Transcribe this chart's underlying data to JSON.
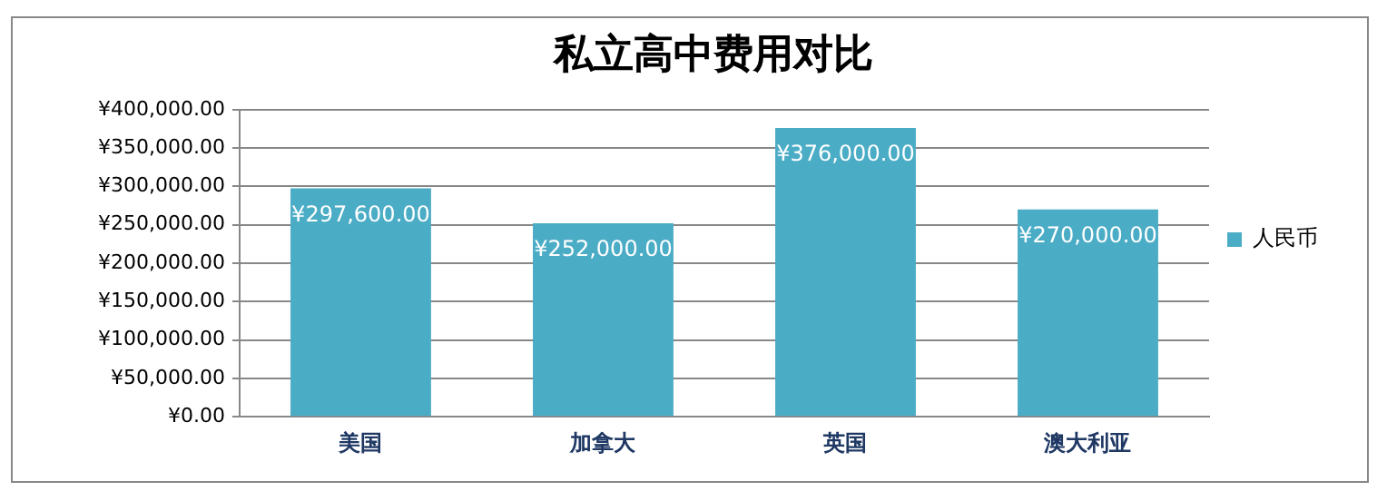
{
  "chart_data": {
    "type": "bar",
    "title": "私立高中费用对比",
    "categories": [
      "美国",
      "加拿大",
      "英国",
      "澳大利亚"
    ],
    "series": [
      {
        "name": "人民币",
        "color": "#4bacc6",
        "values": [
          297600,
          252000,
          376000,
          270000
        ],
        "value_labels": [
          "¥297,600.00",
          "¥252,000.00",
          "¥376,000.00",
          "¥270,000.00"
        ]
      }
    ],
    "ylim": [
      0,
      400000
    ],
    "yticks": [
      {
        "value": 0,
        "label": "¥0.00"
      },
      {
        "value": 50000,
        "label": "¥50,000.00"
      },
      {
        "value": 100000,
        "label": "¥100,000.00"
      },
      {
        "value": 150000,
        "label": "¥150,000.00"
      },
      {
        "value": 200000,
        "label": "¥200,000.00"
      },
      {
        "value": 250000,
        "label": "¥250,000.00"
      },
      {
        "value": 300000,
        "label": "¥300,000.00"
      },
      {
        "value": 350000,
        "label": "¥350,000.00"
      },
      {
        "value": 400000,
        "label": "¥400,000.00"
      }
    ],
    "grid": "y",
    "legend": "right"
  }
}
